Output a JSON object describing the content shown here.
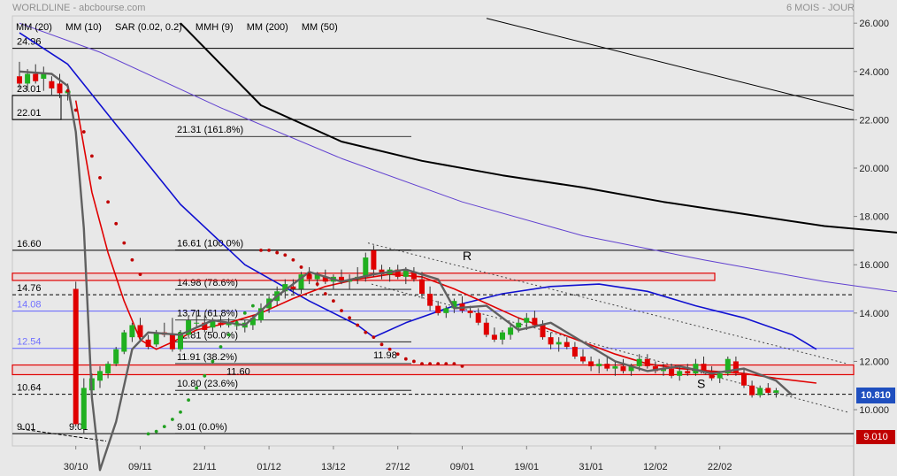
{
  "header": {
    "left": "WORLDLINE - abcbourse.com",
    "right": "6 MOIS - JOUR"
  },
  "legend": [
    {
      "label": "MM (20)",
      "color": "#1010d0"
    },
    {
      "label": "MM (10)",
      "color": "#e00000"
    },
    {
      "label": "SAR (0.02, 0.2)",
      "color": "#c00000"
    },
    {
      "label": "MMH (9)",
      "color": "#606060"
    },
    {
      "label": "MM (200)",
      "color": "#000000"
    },
    {
      "label": "MM (50)",
      "color": "#7030d0"
    }
  ],
  "badges": {
    "last_price": "10.810",
    "support_level": "9.010"
  },
  "colors": {
    "up": "#20b020",
    "down": "#e00000",
    "bg": "#e8e8e8",
    "mm20": "#1010d0",
    "mm10": "#e00000",
    "mmh": "#606060",
    "mm200": "#000000",
    "mm50": "#6040d0",
    "sar": "#c00000",
    "sar_up": "#20a020"
  },
  "chart_data": {
    "type": "candlestick",
    "title": "WORLDLINE - abcbourse.com",
    "subtitle": "6 MOIS - JOUR",
    "ylim": [
      8.5,
      26.3
    ],
    "y_ticks": [
      "10.000",
      "12.000",
      "14.000",
      "16.000",
      "18.000",
      "20.000",
      "22.000",
      "24.000",
      "26.000"
    ],
    "x_labels": [
      "30/10",
      "09/11",
      "21/11",
      "01/12",
      "13/12",
      "27/12",
      "09/01",
      "19/01",
      "31/01",
      "12/02",
      "22/02"
    ],
    "x_label_index": [
      7,
      15,
      23,
      31,
      39,
      47,
      55,
      63,
      71,
      79,
      87
    ],
    "n_bars": 100,
    "candles": [
      [
        23.8,
        24.4,
        23.3,
        23.5
      ],
      [
        23.5,
        24.1,
        23.2,
        23.9
      ],
      [
        23.9,
        24.3,
        23.5,
        23.6
      ],
      [
        23.7,
        24.2,
        23.2,
        23.9
      ],
      [
        23.6,
        23.8,
        23.0,
        23.3
      ],
      [
        23.5,
        23.9,
        22.9,
        23.1
      ],
      [
        23.1,
        23.5,
        22.8,
        23.2
      ],
      [
        15.0,
        15.3,
        9.3,
        9.4
      ],
      [
        9.2,
        11.3,
        9.0,
        10.9
      ],
      [
        10.8,
        11.5,
        10.5,
        11.3
      ],
      [
        11.2,
        11.8,
        10.9,
        11.6
      ],
      [
        11.5,
        12.0,
        11.3,
        11.9
      ],
      [
        11.9,
        12.6,
        11.8,
        12.5
      ],
      [
        12.4,
        13.3,
        12.3,
        13.2
      ],
      [
        13.0,
        13.6,
        12.8,
        13.5
      ],
      [
        13.5,
        13.8,
        12.8,
        13.0
      ],
      [
        12.9,
        13.1,
        12.5,
        12.6
      ],
      [
        12.7,
        13.3,
        12.6,
        13.2
      ],
      [
        13.2,
        13.6,
        13.0,
        13.1
      ],
      [
        13.1,
        13.8,
        12.4,
        12.5
      ],
      [
        12.5,
        13.3,
        12.4,
        13.2
      ],
      [
        13.1,
        13.9,
        13.0,
        13.7
      ],
      [
        13.6,
        14.1,
        13.4,
        13.6
      ],
      [
        13.6,
        13.9,
        13.2,
        13.3
      ],
      [
        13.4,
        13.8,
        13.2,
        13.7
      ],
      [
        13.6,
        13.9,
        13.4,
        13.5
      ],
      [
        13.5,
        13.8,
        13.4,
        13.6
      ],
      [
        13.5,
        13.7,
        13.3,
        13.5
      ],
      [
        13.4,
        13.7,
        13.2,
        13.6
      ],
      [
        13.5,
        13.9,
        13.3,
        13.8
      ],
      [
        13.7,
        14.4,
        13.6,
        14.2
      ],
      [
        14.2,
        14.7,
        14.0,
        14.6
      ],
      [
        14.5,
        15.1,
        14.3,
        14.9
      ],
      [
        14.9,
        15.4,
        14.6,
        15.2
      ],
      [
        15.1,
        15.4,
        14.8,
        15.0
      ],
      [
        15.0,
        15.7,
        14.8,
        15.6
      ],
      [
        15.6,
        15.9,
        15.2,
        15.4
      ],
      [
        15.4,
        15.7,
        15.1,
        15.6
      ],
      [
        15.5,
        15.8,
        15.2,
        15.3
      ],
      [
        15.3,
        15.6,
        15.0,
        15.5
      ],
      [
        15.5,
        15.8,
        15.2,
        15.3
      ],
      [
        15.3,
        15.6,
        15.0,
        15.4
      ],
      [
        15.4,
        15.9,
        15.2,
        15.5
      ],
      [
        15.5,
        16.5,
        15.3,
        16.3
      ],
      [
        16.6,
        16.8,
        15.5,
        15.8
      ],
      [
        15.8,
        16.0,
        15.4,
        15.6
      ],
      [
        15.6,
        15.9,
        15.3,
        15.8
      ],
      [
        15.8,
        16.0,
        15.4,
        15.5
      ],
      [
        15.5,
        15.9,
        15.2,
        15.8
      ],
      [
        15.7,
        15.9,
        15.3,
        15.4
      ],
      [
        15.4,
        15.7,
        14.6,
        14.8
      ],
      [
        14.8,
        15.1,
        14.1,
        14.3
      ],
      [
        14.3,
        14.5,
        13.9,
        14.0
      ],
      [
        14.0,
        14.3,
        13.8,
        14.2
      ],
      [
        14.2,
        14.6,
        14.0,
        14.5
      ],
      [
        14.4,
        14.7,
        14.0,
        14.1
      ],
      [
        14.1,
        14.3,
        13.8,
        14.0
      ],
      [
        14.0,
        14.2,
        13.5,
        13.6
      ],
      [
        13.6,
        13.8,
        13.0,
        13.1
      ],
      [
        13.1,
        13.4,
        12.8,
        12.9
      ],
      [
        12.9,
        13.3,
        12.7,
        13.2
      ],
      [
        13.1,
        13.6,
        12.9,
        13.4
      ],
      [
        13.4,
        13.8,
        13.2,
        13.6
      ],
      [
        13.6,
        14.0,
        13.3,
        13.8
      ],
      [
        13.8,
        14.1,
        13.4,
        13.5
      ],
      [
        13.5,
        13.7,
        12.9,
        13.0
      ],
      [
        13.0,
        13.2,
        12.5,
        12.7
      ],
      [
        12.7,
        13.0,
        12.4,
        12.8
      ],
      [
        12.8,
        13.0,
        12.5,
        12.6
      ],
      [
        12.6,
        12.8,
        12.1,
        12.2
      ],
      [
        12.2,
        12.5,
        11.9,
        12.0
      ],
      [
        12.0,
        12.2,
        11.6,
        11.8
      ],
      [
        11.8,
        12.1,
        11.5,
        11.9
      ],
      [
        11.9,
        12.2,
        11.6,
        11.7
      ],
      [
        11.7,
        12.0,
        11.4,
        11.8
      ],
      [
        11.8,
        12.1,
        11.5,
        11.6
      ],
      [
        11.6,
        11.9,
        11.4,
        11.8
      ],
      [
        11.8,
        12.3,
        11.6,
        12.1
      ],
      [
        12.1,
        12.3,
        11.7,
        11.8
      ],
      [
        11.8,
        12.0,
        11.5,
        11.6
      ],
      [
        11.6,
        11.9,
        11.4,
        11.7
      ],
      [
        11.7,
        11.9,
        11.3,
        11.4
      ],
      [
        11.4,
        11.8,
        11.2,
        11.6
      ],
      [
        11.6,
        11.9,
        11.4,
        11.5
      ],
      [
        11.5,
        12.1,
        11.4,
        11.9
      ],
      [
        11.9,
        12.2,
        11.5,
        11.6
      ],
      [
        11.6,
        11.8,
        11.2,
        11.3
      ],
      [
        11.3,
        11.6,
        11.1,
        11.5
      ],
      [
        11.5,
        12.2,
        11.4,
        12.1
      ],
      [
        12.0,
        12.2,
        11.4,
        11.5
      ],
      [
        11.5,
        11.7,
        10.9,
        11.0
      ],
      [
        11.0,
        11.2,
        10.5,
        10.6
      ],
      [
        10.6,
        11.0,
        10.5,
        10.9
      ],
      [
        10.9,
        11.1,
        10.6,
        10.7
      ],
      [
        10.7,
        10.9,
        10.5,
        10.8
      ]
    ],
    "mm200": [
      [
        20,
        26.0
      ],
      [
        30,
        22.6
      ],
      [
        40,
        21.1
      ],
      [
        50,
        20.3
      ],
      [
        60,
        19.7
      ],
      [
        70,
        19.2
      ],
      [
        80,
        18.6
      ],
      [
        90,
        18.1
      ],
      [
        100,
        17.6
      ],
      [
        110,
        17.3
      ],
      [
        120,
        17.0
      ],
      [
        129,
        16.8
      ]
    ],
    "mm50": [
      [
        0,
        26.0
      ],
      [
        10,
        24.8
      ],
      [
        25,
        22.5
      ],
      [
        40,
        20.4
      ],
      [
        55,
        18.6
      ],
      [
        70,
        17.2
      ],
      [
        85,
        16.2
      ],
      [
        100,
        15.3
      ],
      [
        115,
        14.6
      ],
      [
        130,
        13.9
      ]
    ],
    "mm20": [
      [
        0,
        25.6
      ],
      [
        6,
        24.3
      ],
      [
        12,
        21.8
      ],
      [
        20,
        18.5
      ],
      [
        28,
        16.0
      ],
      [
        36,
        14.5
      ],
      [
        42,
        13.5
      ],
      [
        44,
        13.0
      ],
      [
        48,
        13.6
      ],
      [
        54,
        14.3
      ],
      [
        60,
        14.8
      ],
      [
        66,
        15.1
      ],
      [
        72,
        15.2
      ],
      [
        78,
        14.9
      ],
      [
        84,
        14.3
      ],
      [
        90,
        13.8
      ],
      [
        96,
        13.1
      ],
      [
        99,
        12.5
      ]
    ],
    "mm10": [
      [
        7,
        22.8
      ],
      [
        9,
        19.0
      ],
      [
        11,
        16.5
      ],
      [
        13,
        14.5
      ],
      [
        15,
        12.9
      ],
      [
        17,
        12.5
      ],
      [
        19,
        12.8
      ],
      [
        22,
        13.3
      ],
      [
        26,
        13.6
      ],
      [
        30,
        14.0
      ],
      [
        34,
        14.6
      ],
      [
        38,
        15.1
      ],
      [
        42,
        15.4
      ],
      [
        46,
        15.6
      ],
      [
        50,
        15.5
      ],
      [
        54,
        15.0
      ],
      [
        58,
        14.4
      ],
      [
        62,
        13.8
      ],
      [
        66,
        13.3
      ],
      [
        70,
        12.8
      ],
      [
        74,
        12.3
      ],
      [
        78,
        11.9
      ],
      [
        82,
        11.7
      ],
      [
        86,
        11.6
      ],
      [
        90,
        11.5
      ],
      [
        94,
        11.3
      ],
      [
        99,
        11.1
      ]
    ],
    "mmh": [
      [
        0,
        24.0
      ],
      [
        4,
        23.9
      ],
      [
        6,
        23.4
      ],
      [
        7,
        21.5
      ],
      [
        8,
        17.5
      ],
      [
        9,
        10.5
      ],
      [
        10,
        7.5
      ],
      [
        12,
        9.5
      ],
      [
        14,
        12.5
      ],
      [
        16,
        13.2
      ],
      [
        20,
        13.1
      ],
      [
        24,
        13.7
      ],
      [
        28,
        13.5
      ],
      [
        32,
        14.7
      ],
      [
        36,
        15.7
      ],
      [
        40,
        15.3
      ],
      [
        44,
        15.6
      ],
      [
        48,
        15.8
      ],
      [
        52,
        15.4
      ],
      [
        54,
        14.2
      ],
      [
        58,
        14.3
      ],
      [
        62,
        13.3
      ],
      [
        66,
        13.6
      ],
      [
        70,
        12.8
      ],
      [
        74,
        12.0
      ],
      [
        78,
        11.6
      ],
      [
        82,
        11.8
      ],
      [
        86,
        11.5
      ],
      [
        90,
        11.7
      ],
      [
        94,
        11.2
      ],
      [
        96,
        10.6
      ]
    ],
    "sar_down": [
      [
        6,
        23.2
      ],
      [
        7,
        22.4
      ],
      [
        8,
        21.5
      ],
      [
        9,
        20.5
      ],
      [
        10,
        19.6
      ],
      [
        11,
        18.6
      ],
      [
        12,
        17.7
      ],
      [
        13,
        16.9
      ],
      [
        14,
        16.2
      ],
      [
        15,
        15.6
      ]
    ],
    "sar_up": [
      [
        16,
        9.0
      ],
      [
        17,
        9.1
      ],
      [
        18,
        9.3
      ],
      [
        19,
        9.6
      ],
      [
        20,
        9.9
      ],
      [
        21,
        10.4
      ],
      [
        22,
        10.9
      ],
      [
        23,
        11.4
      ],
      [
        24,
        12.0
      ],
      [
        25,
        12.6
      ],
      [
        26,
        13.1
      ],
      [
        27,
        13.6
      ],
      [
        28,
        14.0
      ],
      [
        29,
        14.3
      ]
    ],
    "sar_down2": [
      [
        30,
        16.6
      ],
      [
        31,
        16.6
      ],
      [
        32,
        16.5
      ],
      [
        33,
        16.4
      ],
      [
        34,
        16.2
      ],
      [
        35,
        15.9
      ],
      [
        36,
        15.6
      ],
      [
        37,
        15.2
      ],
      [
        38,
        14.8
      ],
      [
        39,
        14.5
      ],
      [
        40,
        14.1
      ],
      [
        41,
        13.8
      ],
      [
        42,
        13.5
      ],
      [
        43,
        13.2
      ],
      [
        44,
        13.0
      ],
      [
        45,
        12.7
      ],
      [
        46,
        12.5
      ],
      [
        47,
        12.3
      ],
      [
        48,
        12.1
      ],
      [
        49,
        12.0
      ],
      [
        50,
        11.9
      ],
      [
        51,
        11.9
      ],
      [
        52,
        11.9
      ],
      [
        53,
        11.9
      ],
      [
        54,
        11.9
      ],
      [
        55,
        11.8
      ]
    ],
    "annotations": {
      "fib": [
        {
          "label": "21.31  (161.8%)",
          "value": 21.31
        },
        {
          "label": "16.61  (100.0%)",
          "value": 16.61
        },
        {
          "label": "14.98  (78.6%)",
          "value": 14.98
        },
        {
          "label": "13.71  (61.8%)",
          "value": 13.71
        },
        {
          "label": "12.81  (50.0%)",
          "value": 12.81
        },
        {
          "label": "11.91  (38.2%)",
          "value": 11.91
        },
        {
          "label": "10.80  (23.6%)",
          "value": 10.8
        },
        {
          "label": "9.01  (0.0%)",
          "value": 9.01
        }
      ],
      "levels": [
        {
          "label": "24.96",
          "value": 24.96
        },
        {
          "label": "23.01",
          "value": 23.01
        },
        {
          "label": "22.01",
          "value": 22.01
        },
        {
          "label": "16.60",
          "value": 16.6
        },
        {
          "label": "14.76",
          "value": 14.76
        },
        {
          "label": "14.08",
          "value": 14.08
        },
        {
          "label": "12.54",
          "value": 12.54
        },
        {
          "label": "10.64",
          "value": 10.64
        },
        {
          "label": "9.01",
          "value": 9.01
        }
      ],
      "misc_labels": [
        {
          "label": "11.98",
          "value": 11.98
        },
        {
          "label": "11.60",
          "value": 11.6
        },
        {
          "label": "9.01",
          "value": 9.01
        },
        {
          "label": "R",
          "value": 16.3
        },
        {
          "label": "S",
          "value": 10.9
        }
      ],
      "zones": [
        {
          "low": 15.35,
          "high": 15.65
        },
        {
          "low": 11.45,
          "high": 11.85
        }
      ]
    }
  }
}
